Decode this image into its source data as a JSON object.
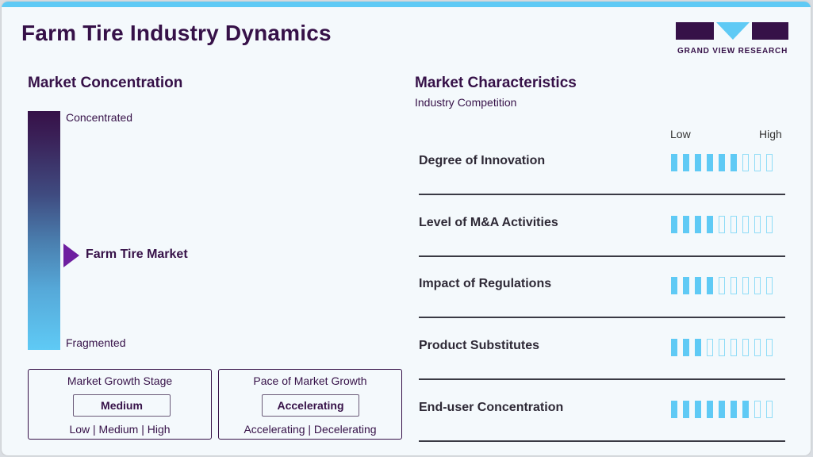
{
  "header": {
    "title": "Farm Tire Industry Dynamics",
    "logo_text": "GRAND VIEW RESEARCH",
    "accent_color": "#5fcaf5",
    "brand_color": "#361148"
  },
  "market_concentration": {
    "heading": "Market Concentration",
    "top_label": "Concentrated",
    "bottom_label": "Fragmented",
    "marker_label": "Farm Tire Market",
    "marker_icon": "triangle-right-icon"
  },
  "growth_stage": {
    "title": "Market Growth Stage",
    "value": "Medium",
    "options_text": "Low | Medium | High"
  },
  "growth_pace": {
    "title": "Pace of Market Growth",
    "value": "Accelerating",
    "options_text": "Accelerating | Decelerating"
  },
  "market_characteristics": {
    "heading": "Market Characteristics",
    "subheading": "Industry Competition",
    "scale_low": "Low",
    "scale_high": "High",
    "rows": [
      {
        "label": "Degree of Innovation",
        "filled": 6,
        "total": 9
      },
      {
        "label": "Level of M&A Activities",
        "filled": 4,
        "total": 9
      },
      {
        "label": "Impact of Regulations",
        "filled": 4,
        "total": 9
      },
      {
        "label": "Product Substitutes",
        "filled": 3,
        "total": 9
      },
      {
        "label": "End-user Concentration",
        "filled": 7,
        "total": 9
      }
    ]
  }
}
